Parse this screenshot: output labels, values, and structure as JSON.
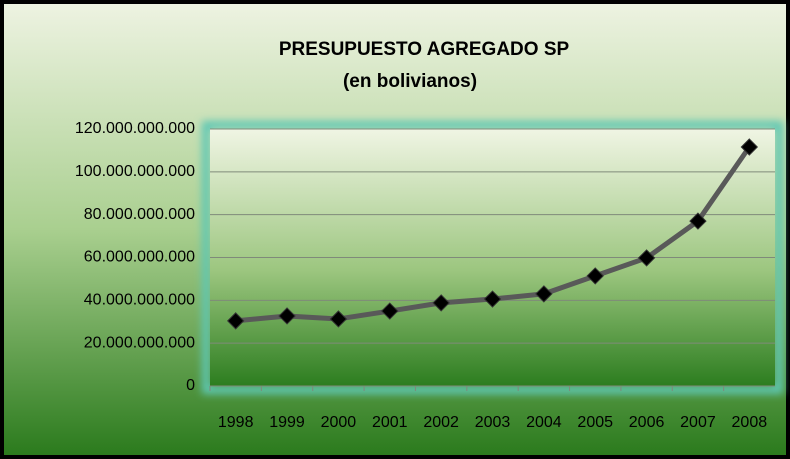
{
  "chart_data": {
    "type": "line",
    "title": "PRESUPUESTO AGREGADO  SP",
    "subtitle": "(en  bolivianos)",
    "categories": [
      "1998",
      "1999",
      "2000",
      "2001",
      "2002",
      "2003",
      "2004",
      "2005",
      "2006",
      "2007",
      "2008"
    ],
    "series": [
      {
        "name": "Presupuesto",
        "color": "#595959",
        "marker_color": "#000000",
        "values": [
          30400000000,
          32700000000,
          31300000000,
          35000000000,
          38800000000,
          40600000000,
          43000000000,
          51400000000,
          59800000000,
          77000000000,
          111600000000
        ]
      }
    ],
    "ylim": [
      0,
      120000000000
    ],
    "yticks": [
      0,
      {
        "value": 20000000000,
        "label": "20.000.000.000"
      },
      {
        "value": 40000000000,
        "label": "40.000.000.000"
      },
      {
        "value": 60000000000,
        "label": "60.000.000.000"
      },
      {
        "value": 80000000000,
        "label": "80.000.000.000"
      },
      {
        "value": 100000000000,
        "label": "100.000.000.000"
      },
      {
        "value": 120000000000,
        "label": "120.000.000.000"
      }
    ],
    "grid": true,
    "legend": false
  }
}
